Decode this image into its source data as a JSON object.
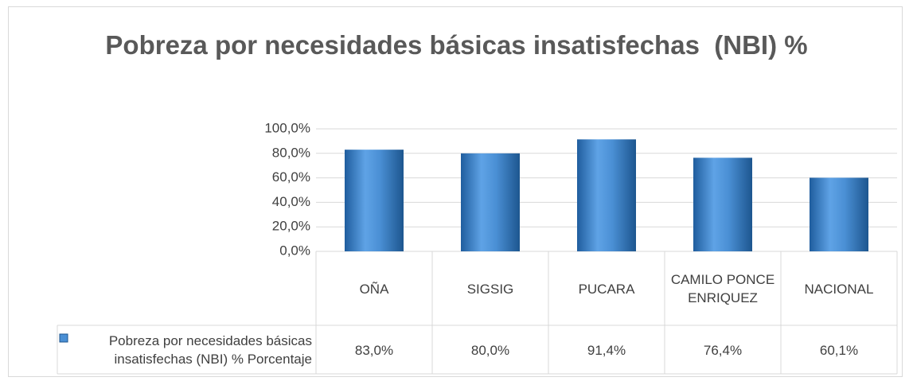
{
  "chart_data": {
    "type": "bar",
    "title": "Pobreza por necesidades básicas insatisfechas  (NBI) %",
    "categories": [
      "OÑA",
      "SIGSIG",
      "PUCARA",
      "CAMILO PONCE ENRIQUEZ",
      "NACIONAL"
    ],
    "series": [
      {
        "name": "Pobreza por necesidades básicas insatisfechas (NBI) % Porcentaje",
        "color": "#4a8fd4",
        "values": [
          83.0,
          80.0,
          91.4,
          76.4,
          60.1
        ],
        "value_labels": [
          "83,0%",
          "80,0%",
          "91,4%",
          "76,4%",
          "60,1%"
        ]
      }
    ],
    "ylim": [
      0,
      100
    ],
    "yticks": [
      {
        "value": 0,
        "label": "0,0%"
      },
      {
        "value": 20,
        "label": "20,0%"
      },
      {
        "value": 40,
        "label": "40,0%"
      },
      {
        "value": 60,
        "label": "60,0%"
      },
      {
        "value": 80,
        "label": "80,0%"
      },
      {
        "value": 100,
        "label": "100,0%"
      }
    ],
    "grid": true
  }
}
